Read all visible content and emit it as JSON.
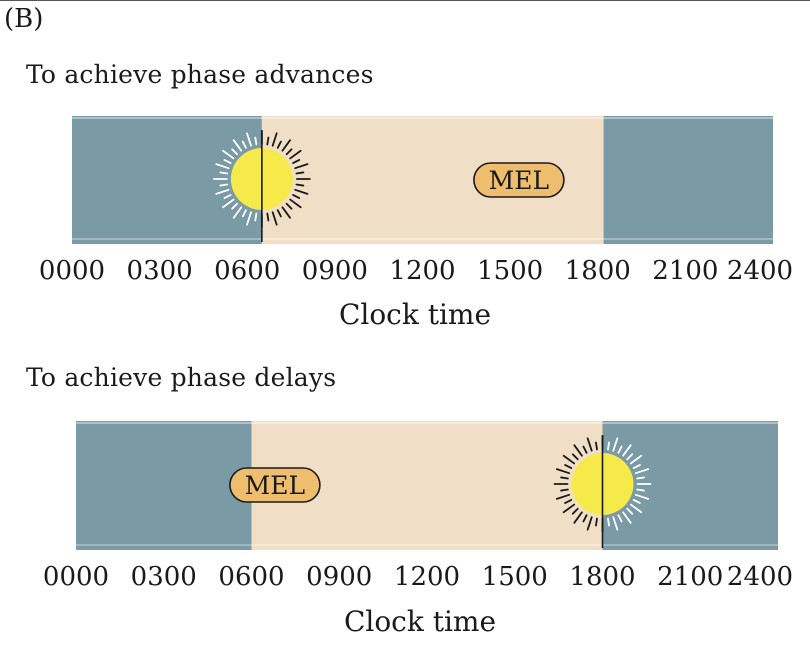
{
  "panel_label": "(B)",
  "axis_label": "Clock time",
  "tick_labels": [
    "0000",
    "0300",
    "0600",
    "0900",
    "1200",
    "1500",
    "1800",
    "2100",
    "2400"
  ],
  "pill_label": "MEL",
  "colors": {
    "night": "#7a9aa6",
    "day": "#f0dfc6",
    "sun": "#f6e94a",
    "pill": "#efbd6e"
  },
  "panels": [
    {
      "title": "To achieve phase advances",
      "day_start_hour": 6.5,
      "day_end_hour": 18.2,
      "sun_hour": 6.5,
      "mel_hour": 15.3
    },
    {
      "title": "To achieve phase delays",
      "day_start_hour": 6.0,
      "day_end_hour": 18.0,
      "sun_hour": 18.0,
      "mel_hour": 6.8
    }
  ]
}
